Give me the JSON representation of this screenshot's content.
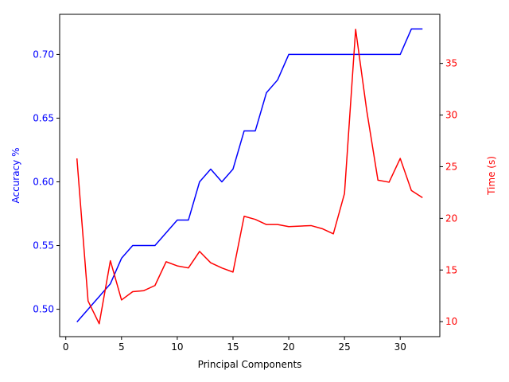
{
  "chart_data": {
    "type": "line",
    "title": "",
    "xlabel": "Principal Components",
    "ylabel_left": "Accuracy %",
    "ylabel_right": "Time (s)",
    "xlim": [
      -0.55,
      33.55
    ],
    "ylim_left": [
      0.4785,
      0.7315
    ],
    "ylim_right": [
      8.55,
      39.75
    ],
    "xticks": [
      0,
      5,
      10,
      15,
      20,
      25,
      30
    ],
    "xtick_labels": [
      "0",
      "5",
      "10",
      "15",
      "20",
      "25",
      "30"
    ],
    "yticks_left": [
      0.5,
      0.55,
      0.6,
      0.65,
      0.7
    ],
    "ytick_labels_left": [
      "0.50",
      "0.55",
      "0.60",
      "0.65",
      "0.70"
    ],
    "yticks_right": [
      10,
      15,
      20,
      25,
      30,
      35
    ],
    "ytick_labels_right": [
      "10",
      "15",
      "20",
      "25",
      "30",
      "35"
    ],
    "grid": false,
    "legend": "none",
    "colors": {
      "accuracy": "#0000ff",
      "time": "#ff0000",
      "axes": "#000000"
    },
    "x": [
      1,
      2,
      3,
      4,
      5,
      6,
      7,
      8,
      9,
      10,
      11,
      12,
      13,
      14,
      15,
      16,
      17,
      18,
      19,
      20,
      21,
      22,
      23,
      24,
      25,
      26,
      27,
      28,
      29,
      30,
      31,
      32
    ],
    "series": [
      {
        "axis": "left",
        "color": "#0000ff",
        "values": [
          0.49,
          0.5,
          0.51,
          0.52,
          0.54,
          0.55,
          0.55,
          0.55,
          0.56,
          0.57,
          0.57,
          0.6,
          0.61,
          0.6,
          0.61,
          0.64,
          0.64,
          0.67,
          0.68,
          0.7,
          0.7,
          0.7,
          0.7,
          0.7,
          0.7,
          0.7,
          0.7,
          0.7,
          0.7,
          0.7,
          0.72,
          0.72
        ]
      },
      {
        "axis": "right",
        "color": "#ff0000",
        "values": [
          25.8,
          12.0,
          9.8,
          15.9,
          12.1,
          12.9,
          13.0,
          13.5,
          15.8,
          15.4,
          15.2,
          16.8,
          15.7,
          15.2,
          14.8,
          20.2,
          19.9,
          19.4,
          19.4,
          19.2,
          19.25,
          19.3,
          19.0,
          18.5,
          22.4,
          38.3,
          30.4,
          23.7,
          23.5,
          25.8,
          22.7,
          22.0
        ]
      }
    ]
  }
}
